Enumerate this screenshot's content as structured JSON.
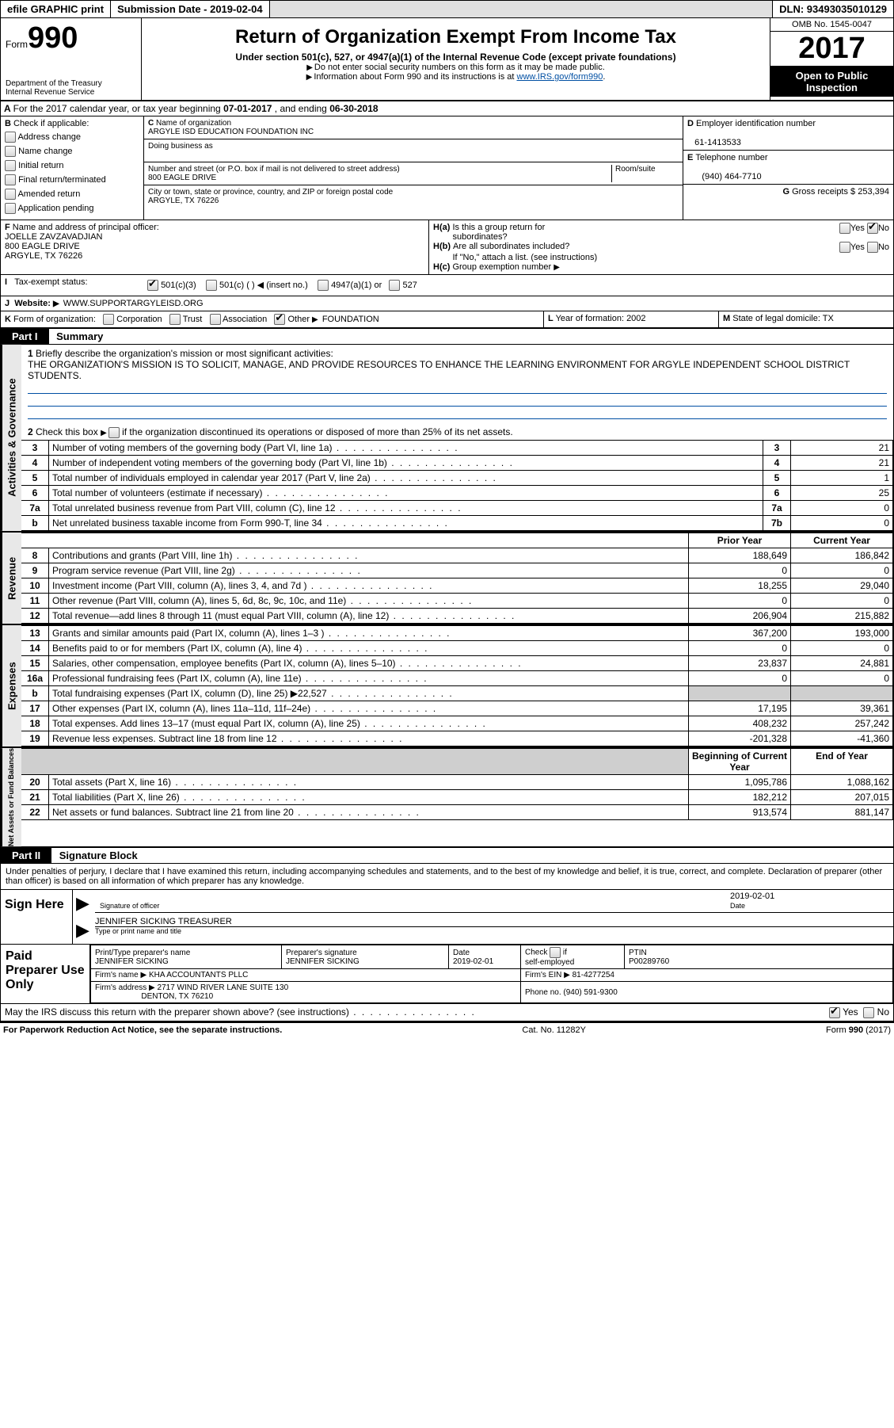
{
  "topbar": {
    "efile": "efile GRAPHIC print",
    "submission": "Submission Date - 2019-02-04",
    "dln": "DLN: 93493035010129"
  },
  "header": {
    "form_word": "Form",
    "form_no": "990",
    "dept1": "Department of the Treasury",
    "dept2": "Internal Revenue Service",
    "title": "Return of Organization Exempt From Income Tax",
    "subtitle": "Under section 501(c), 527, or 4947(a)(1) of the Internal Revenue Code (except private foundations)",
    "note1": "Do not enter social security numbers on this form as it may be made public.",
    "note2_pre": "Information about Form 990 and its instructions is at ",
    "note2_link": "www.IRS.gov/form990",
    "omb": "OMB No. 1545-0047",
    "year": "2017",
    "open1": "Open to Public",
    "open2": "Inspection"
  },
  "A": {
    "text_pre": "For the 2017 calendar year, or tax year beginning ",
    "begin": "07-01-2017",
    "mid": " , and ending ",
    "end": "06-30-2018"
  },
  "B": {
    "label": "Check if applicable:",
    "opts": [
      "Address change",
      "Name change",
      "Initial return",
      "Final return/terminated",
      "Amended return",
      "Application pending"
    ]
  },
  "C": {
    "name_label": "Name of organization",
    "name": "ARGYLE ISD EDUCATION FOUNDATION INC",
    "dba_label": "Doing business as",
    "dba": "",
    "addr_label": "Number and street (or P.O. box if mail is not delivered to street address)",
    "room_label": "Room/suite",
    "addr": "800 EAGLE DRIVE",
    "city_label": "City or town, state or province, country, and ZIP or foreign postal code",
    "city": "ARGYLE, TX  76226"
  },
  "D": {
    "label": "Employer identification number",
    "val": "61-1413533"
  },
  "E": {
    "label": "Telephone number",
    "val": "(940) 464-7710"
  },
  "G": {
    "label": "Gross receipts $",
    "val": "253,394"
  },
  "F": {
    "label": "Name and address of principal officer:",
    "name": "JOELLE ZAVZAVADJIAN",
    "addr1": "800 EAGLE DRIVE",
    "addr2": "ARGYLE, TX  76226"
  },
  "H": {
    "a_label": "Is this a group return for",
    "a_label2": "subordinates?",
    "b_label": "Are all subordinates included?",
    "b_note": "If \"No,\" attach a list. (see instructions)",
    "c_label": "Group exemption number",
    "yes": "Yes",
    "no": "No"
  },
  "I": {
    "label": "Tax-exempt status:",
    "o1": "501(c)(3)",
    "o2": "501(c) (    )",
    "o2b": "(insert no.)",
    "o3": "4947(a)(1) or",
    "o4": "527"
  },
  "J": {
    "label": "Website:",
    "val": "WWW.SUPPORTARGYLEISD.ORG"
  },
  "K": {
    "label": "Form of organization:",
    "o1": "Corporation",
    "o2": "Trust",
    "o3": "Association",
    "o4": "Other",
    "o4val": "FOUNDATION"
  },
  "L": {
    "label": "Year of formation:",
    "val": "2002"
  },
  "M": {
    "label": "State of legal domicile:",
    "val": "TX"
  },
  "part1": {
    "tag": "Part I",
    "title": "Summary",
    "l1_label": "Briefly describe the organization's mission or most significant activities:",
    "l1_text": "THE ORGANIZATION'S MISSION IS TO SOLICIT, MANAGE, AND PROVIDE RESOURCES TO ENHANCE THE LEARNING ENVIRONMENT FOR ARGYLE INDEPENDENT SCHOOL DISTRICT STUDENTS.",
    "l2": "Check this box ▶  if the organization discontinued its operations or disposed of more than 25% of its net assets.",
    "gov_label": "Activities & Governance",
    "rev_label": "Revenue",
    "exp_label": "Expenses",
    "net_label": "Net Assets or Fund Balances",
    "prior": "Prior Year",
    "current": "Current Year",
    "boy": "Beginning of Current Year",
    "eoy": "End of Year"
  },
  "govlines": [
    {
      "n": "3",
      "t": "Number of voting members of the governing body (Part VI, line 1a)",
      "ln": "3",
      "v": "21"
    },
    {
      "n": "4",
      "t": "Number of independent voting members of the governing body (Part VI, line 1b)",
      "ln": "4",
      "v": "21"
    },
    {
      "n": "5",
      "t": "Total number of individuals employed in calendar year 2017 (Part V, line 2a)",
      "ln": "5",
      "v": "1"
    },
    {
      "n": "6",
      "t": "Total number of volunteers (estimate if necessary)",
      "ln": "6",
      "v": "25"
    },
    {
      "n": "7a",
      "t": "Total unrelated business revenue from Part VIII, column (C), line 12",
      "ln": "7a",
      "v": "0"
    },
    {
      "n": "b",
      "t": "Net unrelated business taxable income from Form 990-T, line 34",
      "ln": "7b",
      "v": "0"
    }
  ],
  "revlines": [
    {
      "n": "8",
      "t": "Contributions and grants (Part VIII, line 1h)",
      "p": "188,649",
      "c": "186,842"
    },
    {
      "n": "9",
      "t": "Program service revenue (Part VIII, line 2g)",
      "p": "0",
      "c": "0"
    },
    {
      "n": "10",
      "t": "Investment income (Part VIII, column (A), lines 3, 4, and 7d )",
      "p": "18,255",
      "c": "29,040"
    },
    {
      "n": "11",
      "t": "Other revenue (Part VIII, column (A), lines 5, 6d, 8c, 9c, 10c, and 11e)",
      "p": "0",
      "c": "0"
    },
    {
      "n": "12",
      "t": "Total revenue—add lines 8 through 11 (must equal Part VIII, column (A), line 12)",
      "p": "206,904",
      "c": "215,882"
    }
  ],
  "explines": [
    {
      "n": "13",
      "t": "Grants and similar amounts paid (Part IX, column (A), lines 1–3 )",
      "p": "367,200",
      "c": "193,000"
    },
    {
      "n": "14",
      "t": "Benefits paid to or for members (Part IX, column (A), line 4)",
      "p": "0",
      "c": "0"
    },
    {
      "n": "15",
      "t": "Salaries, other compensation, employee benefits (Part IX, column (A), lines 5–10)",
      "p": "23,837",
      "c": "24,881"
    },
    {
      "n": "16a",
      "t": "Professional fundraising fees (Part IX, column (A), line 11e)",
      "p": "0",
      "c": "0"
    },
    {
      "n": "b",
      "t": "Total fundraising expenses (Part IX, column (D), line 25) ▶22,527",
      "p": "",
      "c": "",
      "shade": true
    },
    {
      "n": "17",
      "t": "Other expenses (Part IX, column (A), lines 11a–11d, 11f–24e)",
      "p": "17,195",
      "c": "39,361"
    },
    {
      "n": "18",
      "t": "Total expenses. Add lines 13–17 (must equal Part IX, column (A), line 25)",
      "p": "408,232",
      "c": "257,242"
    },
    {
      "n": "19",
      "t": "Revenue less expenses. Subtract line 18 from line 12",
      "p": "-201,328",
      "c": "-41,360"
    }
  ],
  "netlines": [
    {
      "n": "20",
      "t": "Total assets (Part X, line 16)",
      "p": "1,095,786",
      "c": "1,088,162"
    },
    {
      "n": "21",
      "t": "Total liabilities (Part X, line 26)",
      "p": "182,212",
      "c": "207,015"
    },
    {
      "n": "22",
      "t": "Net assets or fund balances. Subtract line 21 from line 20",
      "p": "913,574",
      "c": "881,147"
    }
  ],
  "part2": {
    "tag": "Part II",
    "title": "Signature Block",
    "decl": "Under penalties of perjury, I declare that I have examined this return, including accompanying schedules and statements, and to the best of my knowledge and belief, it is true, correct, and complete. Declaration of preparer (other than officer) is based on all information of which preparer has any knowledge."
  },
  "sign": {
    "left": "Sign Here",
    "sig_label": "Signature of officer",
    "date_label": "Date",
    "date": "2019-02-01",
    "name": "JENNIFER SICKING  TREASURER",
    "name_label": "Type or print name and title"
  },
  "prep": {
    "left": "Paid Preparer Use Only",
    "h1": "Print/Type preparer's name",
    "v1": "JENNIFER SICKING",
    "h2": "Preparer's signature",
    "v2": "JENNIFER SICKING",
    "h3": "Date",
    "v3": "2019-02-01",
    "h4": "Check          if self-employed",
    "h5": "PTIN",
    "v5": "P00289760",
    "firm_label": "Firm's name      ▶",
    "firm": "KHA ACCOUNTANTS PLLC",
    "ein_label": "Firm's EIN ▶",
    "ein": "81-4277254",
    "addr_label": "Firm's address ▶",
    "addr": "2717 WIND RIVER LANE SUITE 130",
    "addr2": "DENTON, TX  76210",
    "phone_label": "Phone no.",
    "phone": "(940) 591-9300"
  },
  "discuss": {
    "q": "May the IRS discuss this return with the preparer shown above? (see instructions)",
    "yes": "Yes",
    "no": "No"
  },
  "footer": {
    "l": "For Paperwork Reduction Act Notice, see the separate instructions.",
    "m": "Cat. No. 11282Y",
    "r": "Form 990 (2017)"
  }
}
